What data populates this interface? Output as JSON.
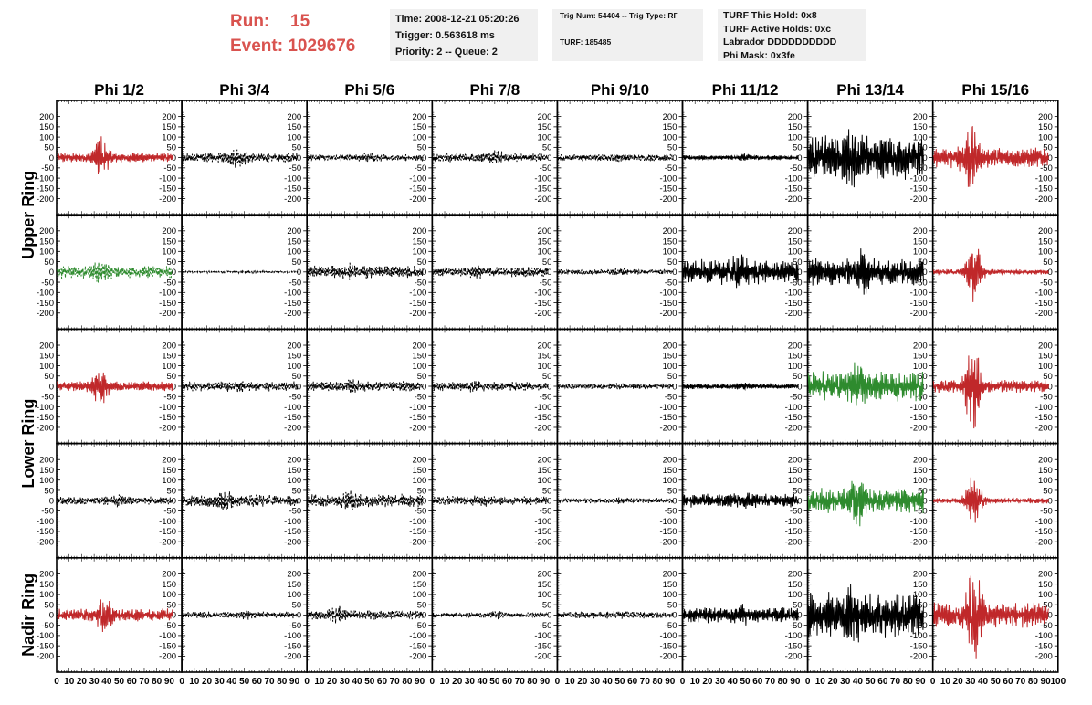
{
  "header": {
    "run_label": "Run:",
    "run_value": "15",
    "event_label": "Event:",
    "event_value": "1029676"
  },
  "info_box_1": {
    "time": "Time: 2008-12-21 05:20:26",
    "trigger": "Trigger: 0.563618 ms",
    "priority": "Priority: 2 -- Queue: 2"
  },
  "info_box_2": {
    "trig": "Trig Num: 54404 -- Trig Type: RF",
    "turf": "TURF: 185485"
  },
  "info_box_3": {
    "hold": "TURF This Hold: 0x8",
    "active": "TURF Active Holds: 0xc",
    "labrador": "Labrador DDDDDDDDDD",
    "mask": "Phi Mask: 0x3fe"
  },
  "colors": {
    "header_red": "#d9534f",
    "trace_red": "#c0282a",
    "trace_green": "#2e8b2e",
    "trace_black": "#000000",
    "box_bg": "#f0f0f0"
  },
  "chart_data": {
    "type": "line",
    "columns": [
      "Phi 1/2",
      "Phi 3/4",
      "Phi 5/6",
      "Phi 7/8",
      "Phi 9/10",
      "Phi 11/12",
      "Phi 13/14",
      "Phi 15/16"
    ],
    "ring_labels": [
      {
        "text": "Upper Ring",
        "rows": [
          0,
          1
        ]
      },
      {
        "text": "Lower Ring",
        "rows": [
          2,
          3
        ]
      },
      {
        "text": "Nadir Ring",
        "rows": [
          4,
          4
        ]
      }
    ],
    "xlim": [
      0,
      100
    ],
    "ylim": [
      -225,
      225
    ],
    "yticks": [
      200,
      150,
      100,
      50,
      0,
      -50,
      -100,
      -150,
      -200
    ],
    "xticks": [
      0,
      10,
      20,
      30,
      40,
      50,
      60,
      70,
      80,
      90,
      100
    ],
    "grid": false,
    "panels": [
      [
        {
          "color": "red",
          "style": "solid",
          "amp": 22,
          "burst": 80,
          "burst_at": 35
        },
        {
          "color": "black",
          "style": "dashed",
          "amp": 22,
          "burst": 30,
          "burst_at": 45
        },
        {
          "color": "black",
          "style": "dashed",
          "amp": 15,
          "burst": 12,
          "burst_at": 50
        },
        {
          "color": "black",
          "style": "dashed",
          "amp": 20,
          "burst": 18,
          "burst_at": 50
        },
        {
          "color": "black",
          "style": "dashed",
          "amp": 15,
          "burst": 8,
          "burst_at": 50
        },
        {
          "color": "black",
          "style": "solid",
          "amp": 10,
          "burst": 8,
          "burst_at": 50
        },
        {
          "color": "black",
          "style": "solid",
          "amp": 95,
          "burst": 50,
          "burst_at": 35
        },
        {
          "color": "red",
          "style": "solid",
          "amp": 45,
          "burst": 110,
          "burst_at": 30
        }
      ],
      [
        {
          "color": "green",
          "style": "dashed",
          "amp": 28,
          "burst": 25,
          "burst_at": 35
        },
        {
          "color": "black",
          "style": "dashed",
          "amp": 4,
          "burst": 2,
          "burst_at": 50
        },
        {
          "color": "black",
          "style": "dashed",
          "amp": 28,
          "burst": 15,
          "burst_at": 35
        },
        {
          "color": "black",
          "style": "dashed",
          "amp": 22,
          "burst": 10,
          "burst_at": 35
        },
        {
          "color": "black",
          "style": "dashed",
          "amp": 12,
          "burst": 6,
          "burst_at": 50
        },
        {
          "color": "black",
          "style": "solid",
          "amp": 55,
          "burst": 25,
          "burst_at": 45
        },
        {
          "color": "black",
          "style": "solid",
          "amp": 60,
          "burst": 55,
          "burst_at": 45
        },
        {
          "color": "red",
          "style": "solid",
          "amp": 12,
          "burst": 130,
          "burst_at": 33
        }
      ],
      [
        {
          "color": "red",
          "style": "solid",
          "amp": 22,
          "burst": 70,
          "burst_at": 35
        },
        {
          "color": "black",
          "style": "dashed",
          "amp": 22,
          "burst": 8,
          "burst_at": 45
        },
        {
          "color": "black",
          "style": "dashed",
          "amp": 22,
          "burst": 10,
          "burst_at": 35
        },
        {
          "color": "black",
          "style": "dashed",
          "amp": 20,
          "burst": 12,
          "burst_at": 35
        },
        {
          "color": "black",
          "style": "dashed",
          "amp": 12,
          "burst": 6,
          "burst_at": 50
        },
        {
          "color": "black",
          "style": "solid",
          "amp": 12,
          "burst": 6,
          "burst_at": 50
        },
        {
          "color": "green",
          "style": "solid",
          "amp": 65,
          "burst": 50,
          "burst_at": 40
        },
        {
          "color": "red",
          "style": "solid",
          "amp": 28,
          "burst": 180,
          "burst_at": 32
        }
      ],
      [
        {
          "color": "black",
          "style": "dashed",
          "amp": 18,
          "burst": 12,
          "burst_at": 50
        },
        {
          "color": "black",
          "style": "dashed",
          "amp": 28,
          "burst": 18,
          "burst_at": 35
        },
        {
          "color": "black",
          "style": "dashed",
          "amp": 30,
          "burst": 20,
          "burst_at": 35
        },
        {
          "color": "black",
          "style": "dashed",
          "amp": 20,
          "burst": 10,
          "burst_at": 40
        },
        {
          "color": "black",
          "style": "dashed",
          "amp": 12,
          "burst": 6,
          "burst_at": 50
        },
        {
          "color": "black",
          "style": "solid",
          "amp": 30,
          "burst": 15,
          "burst_at": 50
        },
        {
          "color": "green",
          "style": "solid",
          "amp": 55,
          "burst": 70,
          "burst_at": 40
        },
        {
          "color": "red",
          "style": "solid",
          "amp": 12,
          "burst": 120,
          "burst_at": 33
        }
      ],
      [
        {
          "color": "red",
          "style": "solid",
          "amp": 28,
          "burst": 55,
          "burst_at": 38
        },
        {
          "color": "black",
          "style": "dashed",
          "amp": 15,
          "burst": 8,
          "burst_at": 50
        },
        {
          "color": "black",
          "style": "dashed",
          "amp": 22,
          "burst": 25,
          "burst_at": 25
        },
        {
          "color": "black",
          "style": "dashed",
          "amp": 12,
          "burst": 8,
          "burst_at": 50
        },
        {
          "color": "black",
          "style": "dashed",
          "amp": 15,
          "burst": 6,
          "burst_at": 50
        },
        {
          "color": "black",
          "style": "solid",
          "amp": 35,
          "burst": 18,
          "burst_at": 50
        },
        {
          "color": "black",
          "style": "solid",
          "amp": 100,
          "burst": 40,
          "burst_at": 35
        },
        {
          "color": "red",
          "style": "solid",
          "amp": 55,
          "burst": 170,
          "burst_at": 33
        }
      ]
    ]
  }
}
